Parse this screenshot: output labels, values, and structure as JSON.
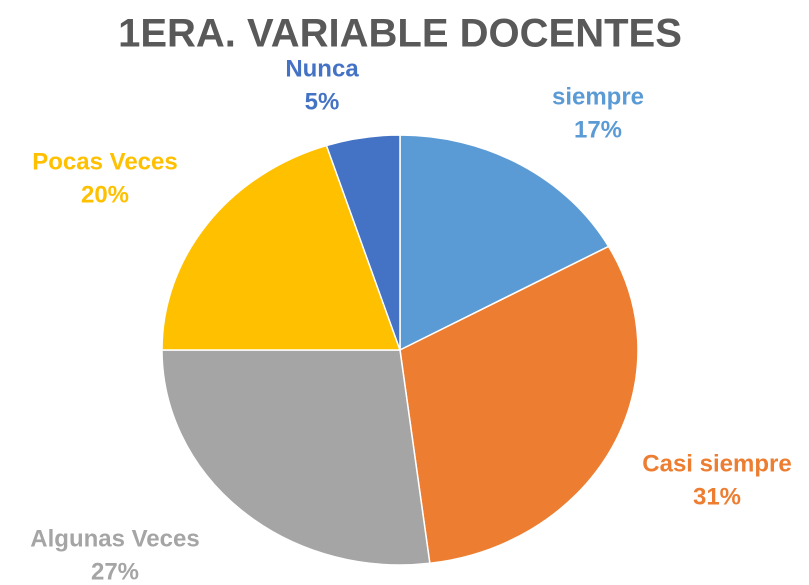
{
  "chart_data": {
    "type": "pie",
    "title": "1ERA. VARIABLE DOCENTES",
    "categories": [
      "siempre",
      "Casi siempre",
      "Algunas Veces",
      "Pocas Veces",
      "Nunca"
    ],
    "values": [
      17,
      31,
      27,
      20,
      5
    ],
    "value_labels": [
      "17%",
      "31%",
      "27%",
      "20%",
      "5%"
    ],
    "colors": [
      "#5b9bd5",
      "#ed7d31",
      "#a5a5a5",
      "#ffc000",
      "#4472c4"
    ]
  }
}
